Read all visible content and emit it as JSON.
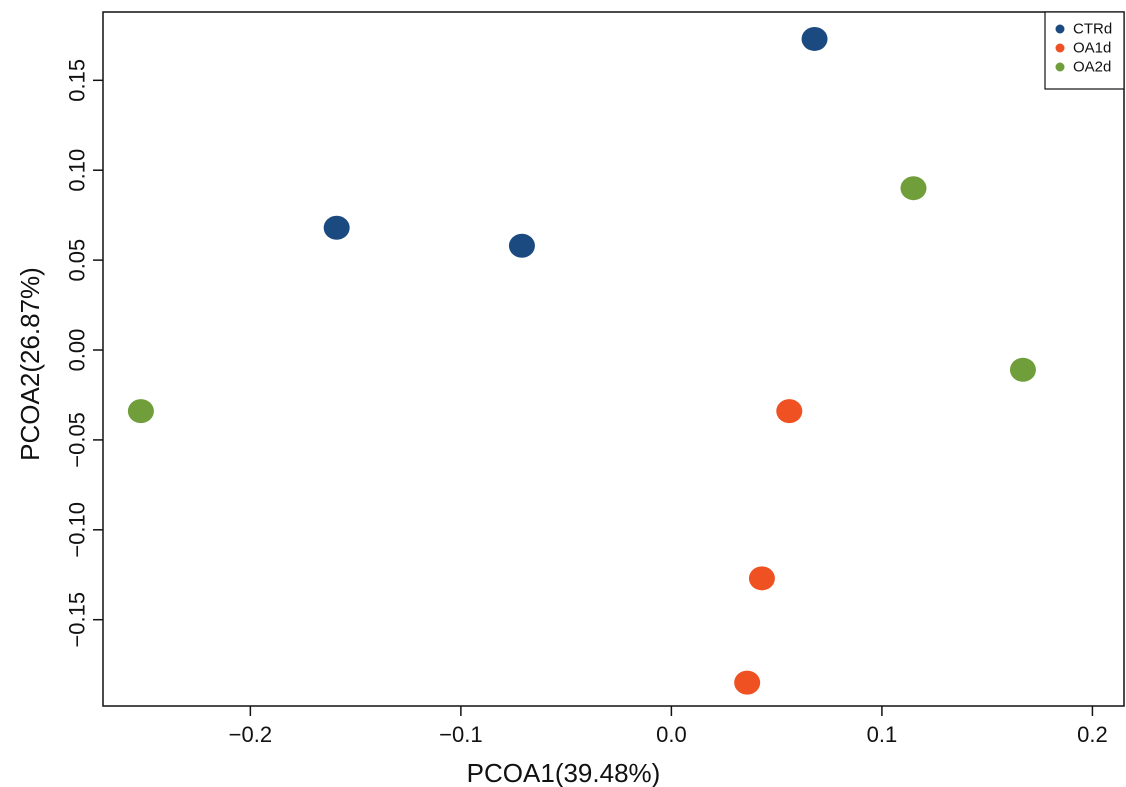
{
  "chart_data": {
    "type": "scatter",
    "title": "",
    "xlabel": "PCOA1(39.48%)",
    "ylabel": "PCOA2(26.87%)",
    "xlim": [
      -0.27,
      0.215
    ],
    "ylim": [
      -0.198,
      0.188
    ],
    "xticks": [
      -0.2,
      -0.1,
      0.0,
      0.1,
      0.2
    ],
    "xtick_labels": [
      "−0.2",
      "−0.1",
      "0.0",
      "0.1",
      "0.2"
    ],
    "yticks": [
      0.15,
      0.1,
      0.05,
      0.0,
      -0.05,
      -0.1,
      -0.15
    ],
    "ytick_labels": [
      "0.15",
      "0.10",
      "0.05",
      "0.00",
      "−0.05",
      "−0.10",
      "−0.15"
    ],
    "grid": false,
    "legend_position": "top-right",
    "series": [
      {
        "name": "CTRd",
        "color": "#1a4a80",
        "points": [
          {
            "x": 0.068,
            "y": 0.173
          },
          {
            "x": -0.159,
            "y": 0.068
          },
          {
            "x": -0.071,
            "y": 0.058
          }
        ]
      },
      {
        "name": "OA1d",
        "color": "#ef5122",
        "points": [
          {
            "x": 0.056,
            "y": -0.034
          },
          {
            "x": 0.043,
            "y": -0.127
          },
          {
            "x": 0.036,
            "y": -0.185
          }
        ]
      },
      {
        "name": "OA2d",
        "color": "#6f9e3a",
        "points": [
          {
            "x": 0.115,
            "y": 0.09
          },
          {
            "x": 0.167,
            "y": -0.011
          },
          {
            "x": -0.252,
            "y": -0.034
          }
        ]
      }
    ]
  }
}
